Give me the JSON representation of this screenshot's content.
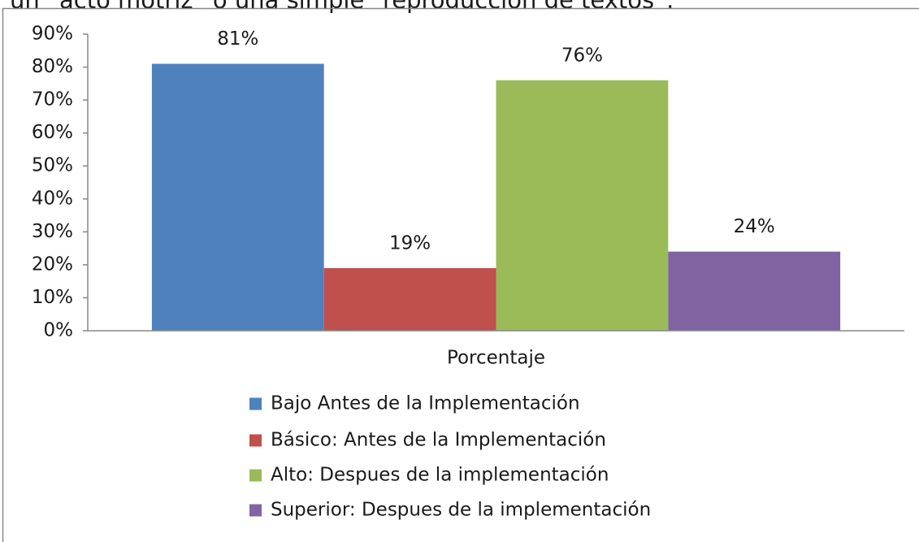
{
  "header_text": "un “acto motriz” o una simple “reproducción de textos”.",
  "chart_data": {
    "type": "bar",
    "categories": [
      "Porcentaje"
    ],
    "series": [
      {
        "name": "Bajo Antes de la Implementación",
        "color": "#4f81bd",
        "values": [
          81
        ],
        "value_labels": [
          "81%"
        ]
      },
      {
        "name": "Básico: Antes de la Implementación",
        "color": "#c0504d",
        "values": [
          19
        ],
        "value_labels": [
          "19%"
        ]
      },
      {
        "name": "Alto: Despues de la implementación",
        "color": "#9bbb59",
        "values": [
          76
        ],
        "value_labels": [
          "76%"
        ]
      },
      {
        "name": "Superior: Despues de la implementación",
        "color": "#8064a2",
        "values": [
          24
        ],
        "value_labels": [
          "24%"
        ]
      }
    ],
    "ylim": [
      0,
      90
    ],
    "yticks": [
      {
        "value": 0,
        "label": "0%"
      },
      {
        "value": 10,
        "label": "10%"
      },
      {
        "value": 20,
        "label": "20%"
      },
      {
        "value": 30,
        "label": "30%"
      },
      {
        "value": 40,
        "label": "40%"
      },
      {
        "value": 50,
        "label": "50%"
      },
      {
        "value": 60,
        "label": "60%"
      },
      {
        "value": 70,
        "label": "70%"
      },
      {
        "value": 80,
        "label": "80%"
      },
      {
        "value": 90,
        "label": "90%"
      }
    ],
    "legend": "bottom"
  }
}
